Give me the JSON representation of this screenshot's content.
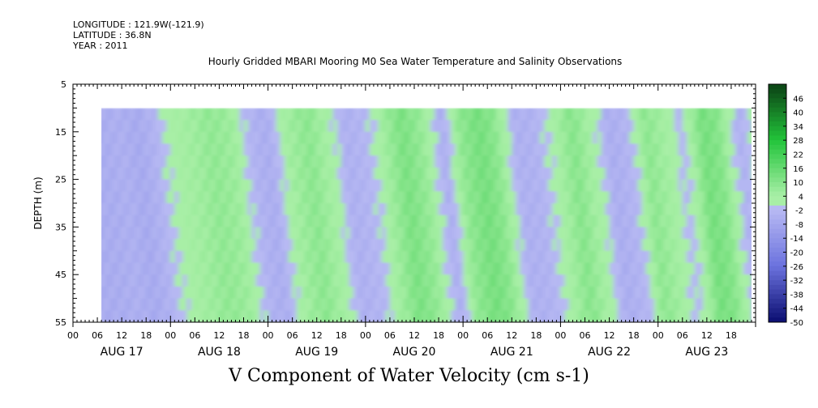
{
  "header": {
    "longitude": "LONGITUDE : 121.9W(-121.9)",
    "latitude": "LATITUDE : 36.8N",
    "year": "YEAR : 2011"
  },
  "chart_data": {
    "type": "heatmap",
    "title": "Hourly Gridded MBARI Mooring M0 Sea Water Temperature and Salinity Observations",
    "variable_label": "V Component of Water Velocity (cm s-1)",
    "ylabel": "DEPTH (m)",
    "xlabel": "",
    "y_axis": {
      "range": [
        5,
        55
      ],
      "inverted": true,
      "ticks": [
        5,
        15,
        25,
        35,
        45,
        55
      ],
      "data_top_depth": 10
    },
    "x_axis": {
      "range_hours": [
        0,
        168
      ],
      "hour_ticks": [
        "00",
        "06",
        "12",
        "18"
      ],
      "day_labels": [
        "AUG 17",
        "AUG 18",
        "AUG 19",
        "AUG 20",
        "AUG 21",
        "AUG 22",
        "AUG 23"
      ]
    },
    "data_time_range_hours": [
      7,
      167
    ],
    "colorbar": {
      "levels": [
        46,
        40,
        34,
        28,
        22,
        16,
        10,
        4,
        -2,
        -8,
        -14,
        -20,
        -26,
        -32,
        -38,
        -44,
        -50
      ],
      "colors": {
        "strong_positive": "#0d4a17",
        "positive": "#22c43a",
        "weak_positive": "#a8efa6",
        "weak_negative": "#b7b9f3",
        "negative": "#6b72de",
        "strong_negative": "#0a0d70"
      }
    },
    "time_profile": {
      "hours": [
        7,
        11,
        15,
        19,
        23,
        28,
        33,
        38,
        43,
        47,
        52,
        57,
        62,
        66,
        71,
        76,
        80,
        85,
        90,
        94,
        99,
        103,
        108,
        113,
        118,
        122,
        127,
        131,
        136,
        140,
        145,
        149,
        154,
        158,
        163,
        167
      ],
      "mean_v": [
        -6,
        -5,
        -7,
        -4,
        2,
        5,
        8,
        6,
        -4,
        -6,
        5,
        9,
        3,
        -5,
        -3,
        6,
        12,
        7,
        -6,
        8,
        13,
        9,
        -5,
        -4,
        4,
        10,
        3,
        -6,
        -3,
        9,
        4,
        -2,
        13,
        10,
        -5,
        2
      ]
    },
    "grid": false,
    "legend": "colorbar right"
  }
}
